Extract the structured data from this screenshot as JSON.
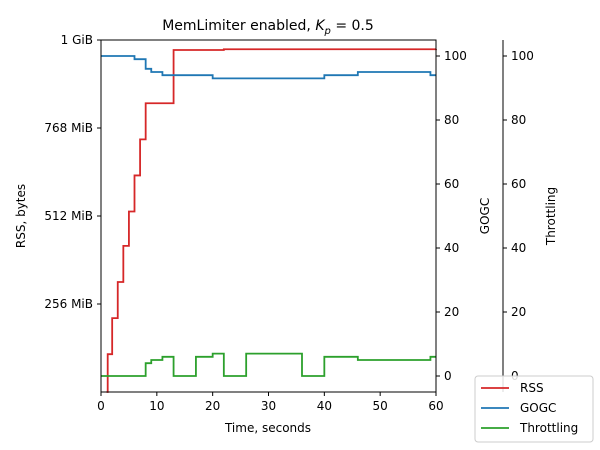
{
  "chart_data": {
    "type": "line",
    "title": "MemLimiter enabled, K_p = 0.5",
    "title_main": "MemLimiter enabled, ",
    "title_symbol": "K",
    "title_subscript": "p",
    "title_value": " = 0.5",
    "xlabel": "Time, seconds",
    "xlim": [
      0,
      60
    ],
    "x_ticks": [
      0,
      10,
      20,
      30,
      40,
      50,
      60
    ],
    "grid": false,
    "legend_position": "bottom-right",
    "axes": {
      "rss": {
        "label": "RSS, bytes",
        "side": "left",
        "range_mib": [
          0,
          1024
        ],
        "ticks": [
          {
            "value": 256,
            "label": "256 MiB"
          },
          {
            "value": 512,
            "label": "512 MiB"
          },
          {
            "value": 768,
            "label": "768 MiB"
          },
          {
            "value": 1024,
            "label": "1 GiB"
          }
        ]
      },
      "gogc": {
        "label": "GOGC",
        "side": "right",
        "range": [
          -5,
          105
        ],
        "ticks": [
          0,
          20,
          40,
          60,
          80,
          100
        ]
      },
      "throttling": {
        "label": "Throttling",
        "side": "right-outer",
        "range": [
          -5,
          105
        ],
        "ticks": [
          0,
          20,
          40,
          60,
          80,
          100
        ]
      }
    },
    "series": [
      {
        "name": "RSS",
        "axis": "rss",
        "color": "#d62728",
        "step": true,
        "x": [
          1,
          1.2,
          2,
          3,
          4,
          5,
          6,
          7,
          8,
          12,
          13,
          22,
          60
        ],
        "y": [
          0,
          110,
          215,
          320,
          425,
          525,
          630,
          735,
          840,
          840,
          995,
          997,
          998
        ]
      },
      {
        "name": "GOGC",
        "axis": "gogc",
        "color": "#1f77b4",
        "step": true,
        "x": [
          0,
          6,
          8,
          9,
          11,
          15,
          20,
          31,
          40,
          46,
          59,
          60
        ],
        "y": [
          100,
          99,
          96,
          95,
          94,
          94,
          93,
          93,
          94,
          95,
          94,
          94
        ]
      },
      {
        "name": "Throttling",
        "axis": "throttling",
        "color": "#2ca02c",
        "step": true,
        "x": [
          0,
          8,
          9,
          11,
          13,
          17,
          20,
          22,
          26,
          36,
          40,
          46,
          59,
          60
        ],
        "y": [
          0,
          4,
          5,
          6,
          0,
          6,
          7,
          0,
          7,
          0,
          6,
          5,
          6,
          6
        ]
      }
    ]
  }
}
